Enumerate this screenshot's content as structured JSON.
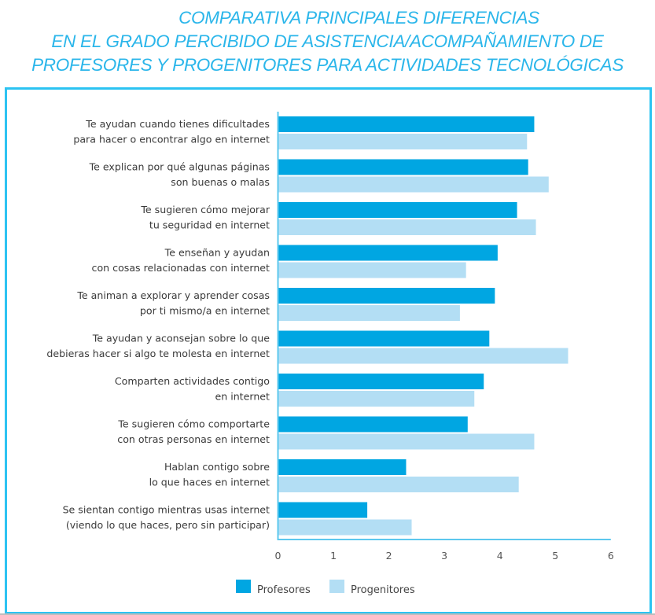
{
  "title_lines": [
    "COMPARATIVA PRINCIPALES DIFERENCIAS",
    "EN EL GRADO PERCIBIDO DE ASISTENCIA/ACOMPAÑAMIENTO DE",
    "PROFESORES Y PROGENITORES PARA ACTIVIDADES TECNOLÓGICAS"
  ],
  "colors": {
    "title": "#2bb6ea",
    "frame": "#2cc3f2",
    "profesores": "#00a6e2",
    "progenitores": "#b3def4",
    "axis": "#5cc8ee"
  },
  "chart_data": {
    "type": "bar",
    "orientation": "horizontal",
    "title": "COMPARATIVA PRINCIPALES DIFERENCIAS EN EL GRADO PERCIBIDO DE ASISTENCIA/ACOMPAÑAMIENTO DE PROFESORES Y PROGENITORES PARA ACTIVIDADES TECNOLÓGICAS",
    "xlabel": "",
    "ylabel": "",
    "xlim": [
      0,
      6
    ],
    "xticks": [
      "0",
      "1",
      "2",
      "3",
      "4",
      "5",
      "6"
    ],
    "grid": false,
    "legend_position": "bottom-center",
    "categories": [
      [
        "Te ayudan cuando tienes dificultades",
        "para hacer o encontrar algo en internet"
      ],
      [
        "Te explican por qué algunas páginas",
        "son buenas o malas"
      ],
      [
        "Te sugieren cómo mejorar",
        "tu seguridad en internet"
      ],
      [
        "Te enseñan y ayudan",
        "con cosas relacionadas con internet"
      ],
      [
        "Te animan a explorar y aprender cosas",
        "por ti mismo/a en internet"
      ],
      [
        "Te ayudan y aconsejan sobre lo que",
        "debieras hacer si algo te molesta en internet"
      ],
      [
        "Comparten actividades contigo",
        "en internet"
      ],
      [
        "Te sugieren cómo comportarte",
        "con otras personas en internet"
      ],
      [
        "Hablan contigo sobre",
        "lo que haces en internet"
      ],
      [
        "Se sientan contigo mientras usas internet",
        "(viendo lo que haces, pero sin participar)"
      ]
    ],
    "series": [
      {
        "name": "Profesores",
        "values": [
          4.62,
          4.51,
          4.31,
          3.96,
          3.91,
          3.81,
          3.71,
          3.42,
          2.31,
          1.61
        ]
      },
      {
        "name": "Progenitores",
        "values": [
          4.49,
          4.88,
          4.65,
          3.39,
          3.28,
          5.23,
          3.54,
          4.62,
          4.34,
          2.41
        ]
      }
    ]
  }
}
